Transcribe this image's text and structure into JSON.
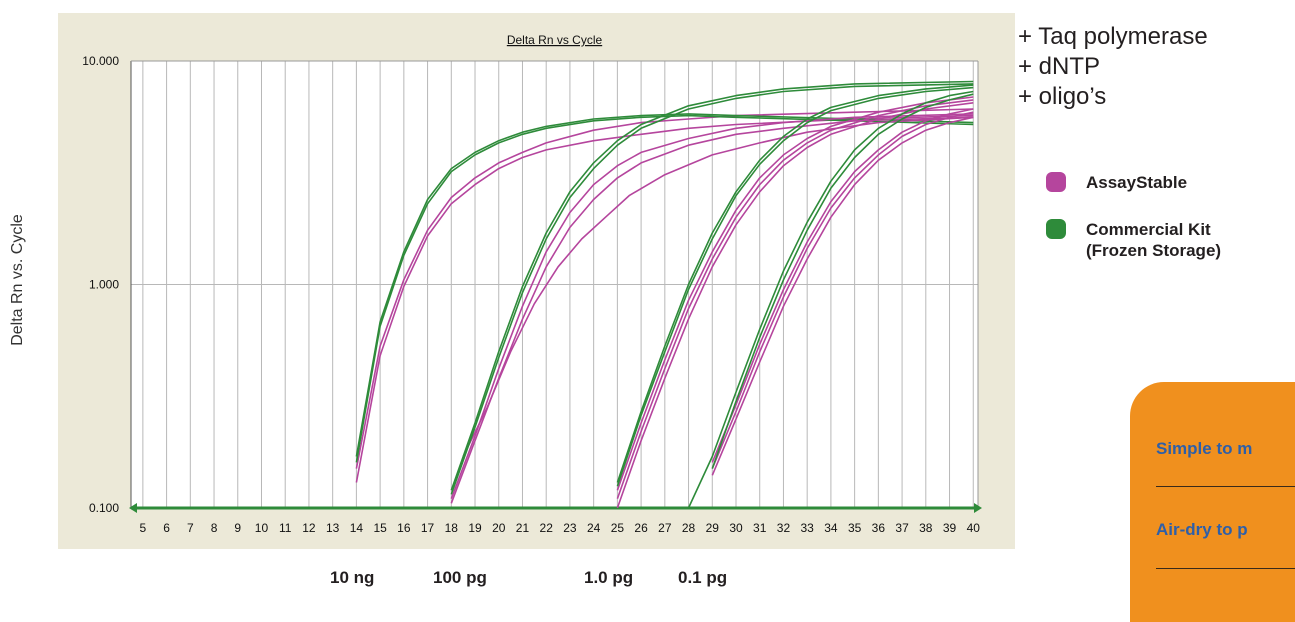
{
  "outer_ylabel": "Delta Rn vs. Cycle",
  "template_amounts": [
    "10 ng",
    "100 pg",
    "1.0 pg",
    "0.1 pg"
  ],
  "reaction_components": [
    "+ Taq polymerase",
    "+ dNTP",
    "+ oligo’s"
  ],
  "legend": [
    {
      "label": "AssayStable",
      "color": "#b5459d"
    },
    {
      "label": "Commercial Kit\n(Frozen Storage)",
      "color": "#2e8b3a"
    }
  ],
  "features": [
    {
      "label": "Simple to m"
    },
    {
      "label": "Air-dry to p"
    }
  ],
  "chart_data": {
    "type": "line",
    "title": "Delta Rn vs Cycle",
    "xlabel": "",
    "ylabel": "",
    "xlim": [
      4.5,
      40.2
    ],
    "ylim": [
      0.1,
      10
    ],
    "y_scale": "log",
    "x_ticks": [
      5,
      6,
      7,
      8,
      9,
      10,
      11,
      12,
      13,
      14,
      15,
      16,
      17,
      18,
      19,
      20,
      21,
      22,
      23,
      24,
      25,
      26,
      27,
      28,
      29,
      30,
      31,
      32,
      33,
      34,
      35,
      36,
      37,
      38,
      39,
      40
    ],
    "y_ticks": [
      {
        "value": 0.1,
        "label": "0.100"
      },
      {
        "value": 1,
        "label": "1.000"
      },
      {
        "value": 10,
        "label": "10.000"
      }
    ],
    "grid": true,
    "series_colors": {
      "AssayStable": "#b5459d",
      "Commercial Kit": "#2e8b3a"
    },
    "groups": [
      {
        "name": "10 ng",
        "series": [
          {
            "name": "AssayStable",
            "x": [
              14,
              15,
              16,
              17,
              18,
              19,
              20,
              21,
              22,
              24,
              26,
              28,
              30,
              35,
              40
            ],
            "y": [
              0.13,
              0.48,
              0.98,
              1.65,
              2.3,
              2.8,
              3.3,
              3.7,
              4.0,
              4.4,
              4.7,
              5.0,
              5.2,
              5.5,
              5.7
            ]
          },
          {
            "name": "AssayStable",
            "x": [
              14,
              15,
              16,
              17,
              18,
              19,
              20,
              21,
              22,
              24,
              26,
              28,
              30,
              35,
              40
            ],
            "y": [
              0.15,
              0.53,
              1.05,
              1.75,
              2.45,
              3.0,
              3.5,
              3.9,
              4.3,
              4.9,
              5.3,
              5.5,
              5.7,
              5.9,
              6.1
            ]
          },
          {
            "name": "Commercial Kit",
            "x": [
              14,
              15,
              16,
              17,
              18,
              19,
              20,
              21,
              22,
              24,
              26,
              28,
              30,
              35,
              40
            ],
            "y": [
              0.17,
              0.68,
              1.4,
              2.4,
              3.3,
              3.9,
              4.4,
              4.8,
              5.1,
              5.5,
              5.7,
              5.8,
              5.7,
              5.5,
              5.3
            ]
          },
          {
            "name": "Commercial Kit",
            "x": [
              14,
              15,
              16,
              17,
              18,
              19,
              20,
              21,
              22,
              24,
              26,
              28,
              30,
              35,
              40
            ],
            "y": [
              0.16,
              0.65,
              1.35,
              2.3,
              3.2,
              3.8,
              4.3,
              4.7,
              5.0,
              5.4,
              5.6,
              5.7,
              5.6,
              5.4,
              5.2
            ]
          }
        ]
      },
      {
        "name": "100 pg",
        "series": [
          {
            "name": "AssayStable",
            "x": [
              18,
              19,
              20,
              21,
              22,
              23,
              24,
              25,
              26,
              28,
              30,
              32,
              35,
              40
            ],
            "y": [
              0.11,
              0.21,
              0.42,
              0.8,
              1.4,
              2.1,
              2.8,
              3.4,
              3.9,
              4.5,
              5.0,
              5.3,
              5.6,
              5.8
            ]
          },
          {
            "name": "AssayStable",
            "x": [
              18,
              19,
              20,
              21,
              22,
              23,
              24,
              25,
              26,
              28,
              30,
              32,
              35,
              40
            ],
            "y": [
              0.105,
              0.2,
              0.38,
              0.7,
              1.2,
              1.8,
              2.4,
              3.0,
              3.5,
              4.2,
              4.7,
              5.0,
              5.4,
              5.6
            ]
          },
          {
            "name": "AssayStable",
            "x": [
              18.5,
              19.5,
              20.5,
              21.5,
              22.5,
              23.5,
              24.5,
              25.5,
              27,
              29,
              31,
              33,
              36,
              40
            ],
            "y": [
              0.17,
              0.28,
              0.5,
              0.82,
              1.2,
              1.6,
              2.0,
              2.5,
              3.1,
              3.8,
              4.3,
              4.8,
              5.3,
              5.6
            ]
          },
          {
            "name": "Commercial Kit",
            "x": [
              18,
              19,
              20,
              21,
              22,
              23,
              24,
              25,
              26,
              28,
              30,
              32,
              35,
              40
            ],
            "y": [
              0.12,
              0.24,
              0.5,
              0.98,
              1.7,
              2.6,
              3.5,
              4.4,
              5.2,
              6.3,
              7.0,
              7.5,
              7.9,
              8.1
            ]
          },
          {
            "name": "Commercial Kit",
            "x": [
              18,
              19,
              20,
              21,
              22,
              23,
              24,
              25,
              26,
              28,
              30,
              32,
              35,
              40
            ],
            "y": [
              0.115,
              0.23,
              0.47,
              0.92,
              1.6,
              2.45,
              3.3,
              4.2,
              5.0,
              6.1,
              6.8,
              7.3,
              7.7,
              7.9
            ]
          }
        ]
      },
      {
        "name": "1.0 pg",
        "series": [
          {
            "name": "AssayStable",
            "x": [
              25,
              26,
              27,
              28,
              29,
              30,
              31,
              32,
              33,
              34,
              36,
              38,
              40
            ],
            "y": [
              0.1,
              0.2,
              0.38,
              0.7,
              1.2,
              1.85,
              2.6,
              3.4,
              4.1,
              4.7,
              5.5,
              6.1,
              6.5
            ]
          },
          {
            "name": "AssayStable",
            "x": [
              25,
              26,
              27,
              28,
              29,
              30,
              31,
              32,
              33,
              34,
              36,
              38,
              40
            ],
            "y": [
              0.11,
              0.22,
              0.42,
              0.78,
              1.3,
              2.0,
              2.8,
              3.6,
              4.3,
              4.9,
              5.7,
              6.3,
              6.7
            ]
          },
          {
            "name": "AssayStable",
            "x": [
              25,
              26,
              27,
              28,
              29,
              30,
              31,
              32,
              33,
              34,
              36,
              38,
              40
            ],
            "y": [
              0.12,
              0.24,
              0.46,
              0.85,
              1.4,
              2.15,
              3.0,
              3.8,
              4.5,
              5.1,
              5.9,
              6.5,
              6.9
            ]
          },
          {
            "name": "Commercial Kit",
            "x": [
              25,
              26,
              27,
              28,
              29,
              30,
              31,
              32,
              33,
              34,
              36,
              38,
              40
            ],
            "y": [
              0.13,
              0.27,
              0.53,
              1.0,
              1.7,
              2.6,
              3.6,
              4.6,
              5.5,
              6.2,
              7.0,
              7.5,
              7.8
            ]
          },
          {
            "name": "Commercial Kit",
            "x": [
              25,
              26,
              27,
              28,
              29,
              30,
              31,
              32,
              33,
              34,
              36,
              38,
              40
            ],
            "y": [
              0.125,
              0.26,
              0.5,
              0.95,
              1.6,
              2.5,
              3.45,
              4.4,
              5.3,
              6.0,
              6.8,
              7.3,
              7.6
            ]
          }
        ]
      },
      {
        "name": "0.1 pg",
        "series": [
          {
            "name": "AssayStable",
            "x": [
              29,
              30,
              31,
              32,
              33,
              34,
              35,
              36,
              37,
              38,
              39,
              40
            ],
            "y": [
              0.14,
              0.25,
              0.45,
              0.8,
              1.3,
              2.0,
              2.8,
              3.6,
              4.3,
              4.9,
              5.3,
              5.6
            ]
          },
          {
            "name": "AssayStable",
            "x": [
              29,
              30,
              31,
              32,
              33,
              34,
              35,
              36,
              37,
              38,
              39,
              40
            ],
            "y": [
              0.15,
              0.27,
              0.5,
              0.88,
              1.45,
              2.2,
              3.0,
              3.8,
              4.6,
              5.2,
              5.6,
              5.9
            ]
          },
          {
            "name": "AssayStable",
            "x": [
              29,
              30,
              31,
              32,
              33,
              34,
              35,
              36,
              37,
              38,
              39,
              40
            ],
            "y": [
              0.16,
              0.29,
              0.54,
              0.95,
              1.55,
              2.35,
              3.2,
              4.0,
              4.8,
              5.4,
              5.8,
              6.1
            ]
          },
          {
            "name": "Commercial Kit",
            "x": [
              28,
              29,
              30,
              31,
              32,
              33,
              34,
              35,
              36,
              37,
              38,
              39,
              40
            ],
            "y": [
              0.1,
              0.17,
              0.33,
              0.63,
              1.15,
              1.9,
              2.9,
              4.0,
              5.0,
              5.8,
              6.5,
              7.0,
              7.3
            ]
          },
          {
            "name": "Commercial Kit",
            "x": [
              29,
              30,
              31,
              32,
              33,
              34,
              35,
              36,
              37,
              38,
              39,
              40
            ],
            "y": [
              0.15,
              0.3,
              0.58,
              1.05,
              1.75,
              2.7,
              3.7,
              4.7,
              5.5,
              6.2,
              6.7,
              7.1
            ]
          }
        ]
      }
    ],
    "baseline": {
      "name": "Commercial Kit",
      "x": [
        4.5,
        40.2
      ],
      "y": [
        0.1,
        0.1
      ]
    }
  }
}
